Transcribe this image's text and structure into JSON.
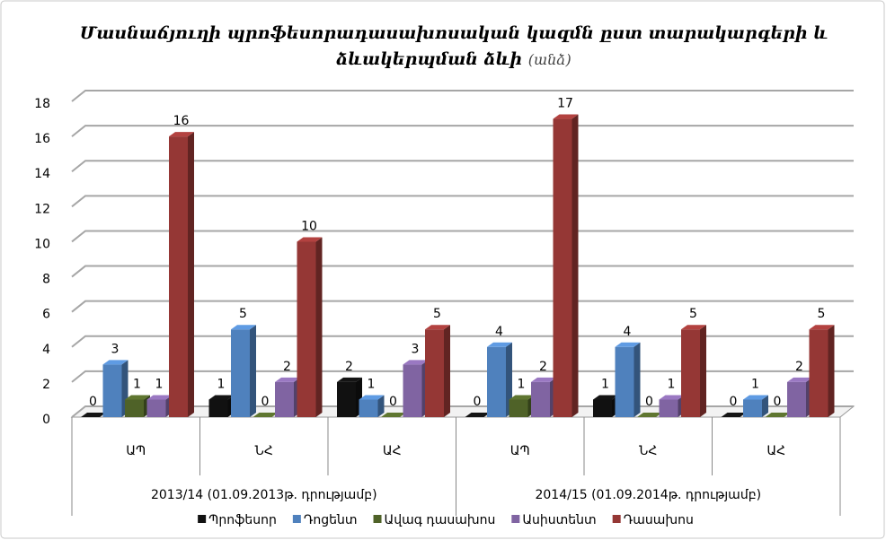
{
  "chart_data": {
    "type": "bar3d",
    "title": [
      "Մասնաճյուղի պրոֆեսորադասախոսական կազմն ըստ տարակարգերի և",
      "ձևակերպման ձևի"
    ],
    "title_note": "(անձ)",
    "groups": [
      "2013/14 (01.09.2013թ. դրությամբ)",
      "2014/15 (01.09.2014թ. դրությամբ)"
    ],
    "categories": [
      "ԱՊ",
      "ՆՀ",
      "ԱՀ",
      "ԱՊ",
      "ՆՀ",
      "ԱՀ"
    ],
    "series": [
      {
        "name": "Պրոֆեսոր",
        "color": "#111111",
        "values": [
          0,
          1,
          2,
          0,
          1,
          0
        ]
      },
      {
        "name": "Դոցենտ",
        "color": "#4f81bd",
        "values": [
          3,
          5,
          1,
          4,
          4,
          1
        ]
      },
      {
        "name": "Ավագ դասախոս",
        "color": "#4f6228",
        "values": [
          1,
          0,
          0,
          1,
          0,
          0
        ]
      },
      {
        "name": "Ասիստենտ",
        "color": "#8064a2",
        "values": [
          1,
          2,
          3,
          2,
          1,
          2
        ]
      },
      {
        "name": "Դասախոս",
        "color": "#953735",
        "values": [
          16,
          10,
          5,
          17,
          5,
          5
        ]
      }
    ],
    "ylim": [
      0,
      18
    ],
    "yticks": [
      0,
      2,
      4,
      6,
      8,
      10,
      12,
      14,
      16,
      18
    ],
    "grid": true,
    "legend": "bottom"
  }
}
